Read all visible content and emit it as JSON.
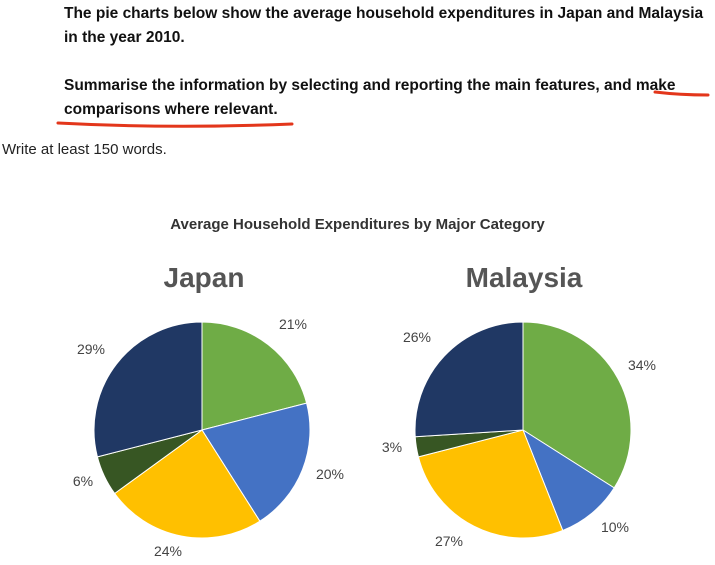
{
  "prompt": {
    "paragraph1": "The pie charts below show the average household expenditures in Japan and Malaysia in the year 2010.",
    "paragraph2": "Summarise the information by selecting and reporting the main features, and make comparisons where relevant.",
    "instruction": "Write at least 150 words."
  },
  "colors": {
    "green": "#6fac46",
    "blue": "#4472c4",
    "yellow": "#ffc000",
    "dark_green": "#375623",
    "navy": "#203864",
    "annotation_red": "#e3361b"
  },
  "chart_data": {
    "type": "pie",
    "title": "Average Household Expenditures by Major Category",
    "charts": [
      {
        "name": "Japan",
        "values": [
          21,
          20,
          24,
          6,
          29
        ],
        "labels": [
          "21%",
          "20%",
          "24%",
          "6%",
          "29%"
        ]
      },
      {
        "name": "Malaysia",
        "values": [
          34,
          10,
          27,
          3,
          26
        ],
        "labels": [
          "34%",
          "10%",
          "27%",
          "3%",
          "26%"
        ]
      }
    ],
    "slice_colors": [
      "#6fac46",
      "#4472c4",
      "#ffc000",
      "#375623",
      "#203864"
    ]
  }
}
